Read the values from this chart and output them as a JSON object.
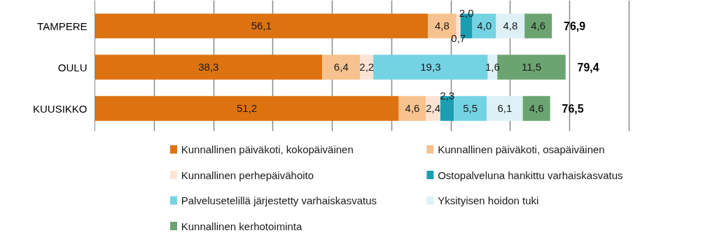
{
  "chart_data": {
    "type": "bar",
    "orientation": "horizontal",
    "stacked": true,
    "categories": [
      "TAMPERE",
      "OULU",
      "KUUSIKKO"
    ],
    "series": [
      {
        "name": "Kunnallinen päiväkoti, kokopäiväinen",
        "color": "#dd7210",
        "values": [
          56.1,
          38.3,
          51.2
        ],
        "value_labels": [
          "56,1",
          "38,3",
          "51,2"
        ]
      },
      {
        "name": "Kunnallinen päiväkoti, osapäiväinen",
        "color": "#f7c28e",
        "values": [
          4.8,
          6.4,
          4.6
        ],
        "value_labels": [
          "4,8",
          "6,4",
          "4,6"
        ]
      },
      {
        "name": "Kunnallinen perhepäivähoito",
        "color": "#fce4d4",
        "values": [
          0.7,
          2.2,
          2.4
        ],
        "value_labels": [
          "0,7",
          "2,2",
          "2,4"
        ]
      },
      {
        "name": "Ostopalveluna hankittu varhaiskasvatus",
        "color": "#1c9db1",
        "values": [
          2.0,
          null,
          2.3
        ],
        "value_labels": [
          "2,0",
          null,
          "2,3"
        ]
      },
      {
        "name": "Palvelusetelillä järjestetty varhaiskasvatus",
        "color": "#74d3e3",
        "values": [
          4.0,
          19.3,
          5.5
        ],
        "value_labels": [
          "4,0",
          "19,3",
          "5,5"
        ]
      },
      {
        "name": "Yksityisen hoidon tuki",
        "color": "#ddf1f6",
        "values": [
          4.8,
          1.6,
          6.1
        ],
        "value_labels": [
          "4,8",
          "1,6",
          "6,1"
        ]
      },
      {
        "name": "Kunnallinen kerhotoiminta",
        "color": "#6ba471",
        "values": [
          4.6,
          11.5,
          4.6
        ],
        "value_labels": [
          "4,6",
          "11,5",
          "4,6"
        ]
      }
    ],
    "totals": [
      "76,9",
      "79,4",
      "76,5"
    ],
    "tick_labels": "y",
    "grid": "x",
    "legend": "bottom"
  }
}
